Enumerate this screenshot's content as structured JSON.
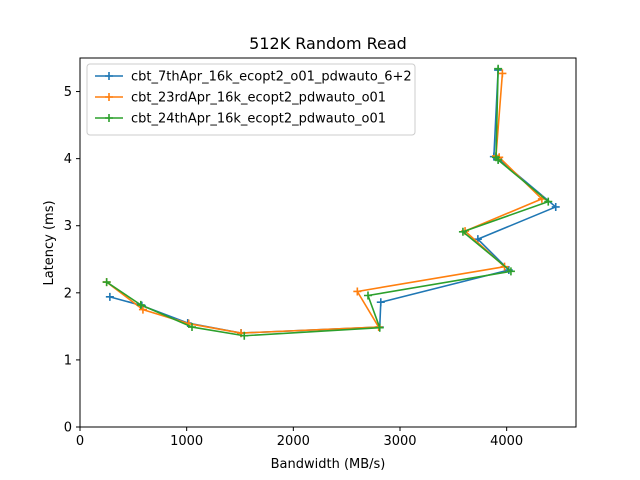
{
  "chart_data": {
    "type": "line",
    "title": "512K  Random Read",
    "xlabel": "Bandwidth (MB/s)",
    "ylabel": "Latency (ms)",
    "xlim": [
      0,
      4650
    ],
    "ylim": [
      0,
      5.5
    ],
    "xticks": [
      "0",
      "1000",
      "2000",
      "3000",
      "4000"
    ],
    "xtick_values": [
      0,
      1000,
      2000,
      3000,
      4000
    ],
    "yticks": [
      "0",
      "1",
      "2",
      "3",
      "4",
      "5"
    ],
    "ytick_values": [
      0,
      1,
      2,
      3,
      4,
      5
    ],
    "grid": false,
    "legend_position": "upper-left",
    "marker": "+",
    "series": [
      {
        "name": "cbt_7thApr_16k_ecopt2_o01_pdwauto_6+2",
        "color": "#1f77b4",
        "x": [
          280,
          580,
          1010,
          1510,
          2810,
          2820,
          4020,
          3730,
          4460,
          3920,
          3880,
          3920
        ],
        "y": [
          1.94,
          1.81,
          1.55,
          1.4,
          1.49,
          1.86,
          2.34,
          2.8,
          3.28,
          4.0,
          4.03,
          5.32
        ]
      },
      {
        "name": "cbt_23rdApr_16k_ecopt2_pdwauto_o01",
        "color": "#ff7f0e",
        "x": [
          250,
          590,
          1020,
          1510,
          2800,
          2600,
          3980,
          3610,
          4330,
          3930,
          3900,
          3960
        ],
        "y": [
          2.16,
          1.75,
          1.54,
          1.4,
          1.49,
          2.02,
          2.39,
          2.92,
          3.4,
          4.02,
          4.04,
          5.27
        ]
      },
      {
        "name": "cbt_24thApr_16k_ecopt2_pdwauto_o01",
        "color": "#2ca02c",
        "x": [
          250,
          570,
          1050,
          1540,
          2810,
          2700,
          4040,
          3590,
          4390,
          3920,
          3900,
          3920
        ],
        "y": [
          2.16,
          1.82,
          1.49,
          1.36,
          1.48,
          1.96,
          2.32,
          2.91,
          3.36,
          3.98,
          4.02,
          5.34
        ]
      }
    ]
  }
}
